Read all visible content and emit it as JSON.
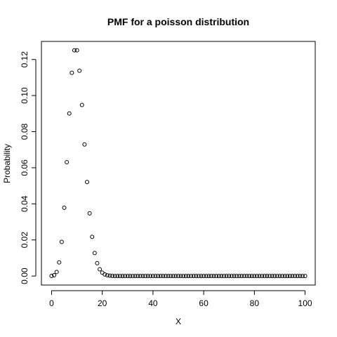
{
  "chart_data": {
    "type": "scatter",
    "title": "PMF for a poisson distribution",
    "xlabel": "X",
    "ylabel": "Probability",
    "xlim": [
      -4,
      104
    ],
    "ylim": [
      -0.005,
      0.13
    ],
    "x_ticks": [
      0,
      20,
      40,
      60,
      80,
      100
    ],
    "x_tick_labels": [
      "0",
      "20",
      "40",
      "60",
      "80",
      "100"
    ],
    "y_ticks": [
      0,
      0.02,
      0.04,
      0.06,
      0.08,
      0.1,
      0.12
    ],
    "y_tick_labels": [
      "0.00",
      "0.02",
      "0.04",
      "0.06",
      "0.08",
      "0.10",
      "0.12"
    ],
    "grid": false,
    "legend": "none",
    "series": [
      {
        "marker": "open-circle",
        "x": [
          0,
          1,
          2,
          3,
          4,
          5,
          6,
          7,
          8,
          9,
          10,
          11,
          12,
          13,
          14,
          15,
          16,
          17,
          18,
          19,
          20,
          21,
          22,
          23,
          24,
          25,
          26,
          27,
          28,
          29,
          30,
          31,
          32,
          33,
          34,
          35,
          36,
          37,
          38,
          39,
          40,
          41,
          42,
          43,
          44,
          45,
          46,
          47,
          48,
          49,
          50,
          51,
          52,
          53,
          54,
          55,
          56,
          57,
          58,
          59,
          60,
          61,
          62,
          63,
          64,
          65,
          66,
          67,
          68,
          69,
          70,
          71,
          72,
          73,
          74,
          75,
          76,
          77,
          78,
          79,
          80,
          81,
          82,
          83,
          84,
          85,
          86,
          87,
          88,
          89,
          90,
          91,
          92,
          93,
          94,
          95,
          96,
          97,
          98,
          99,
          100
        ],
        "y": [
          5e-05,
          0.00045,
          0.00227,
          0.00757,
          0.01892,
          0.03783,
          0.06306,
          0.09008,
          0.1126,
          0.12511,
          0.12511,
          0.11374,
          0.09478,
          0.07291,
          0.05208,
          0.03472,
          0.0217,
          0.01276,
          0.00709,
          0.00373,
          0.00187,
          0.00089,
          0.0004,
          0.00018,
          7e-05,
          3e-05,
          1e-05,
          0,
          0,
          0,
          0,
          0,
          0,
          0,
          0,
          0,
          0,
          0,
          0,
          0,
          0,
          0,
          0,
          0,
          0,
          0,
          0,
          0,
          0,
          0,
          0,
          0,
          0,
          0,
          0,
          0,
          0,
          0,
          0,
          0,
          0,
          0,
          0,
          0,
          0,
          0,
          0,
          0,
          0,
          0,
          0,
          0,
          0,
          0,
          0,
          0,
          0,
          0,
          0,
          0,
          0,
          0,
          0,
          0,
          0,
          0,
          0,
          0,
          0,
          0,
          0,
          0,
          0,
          0,
          0,
          0,
          0,
          0,
          0,
          0,
          0
        ]
      }
    ]
  }
}
